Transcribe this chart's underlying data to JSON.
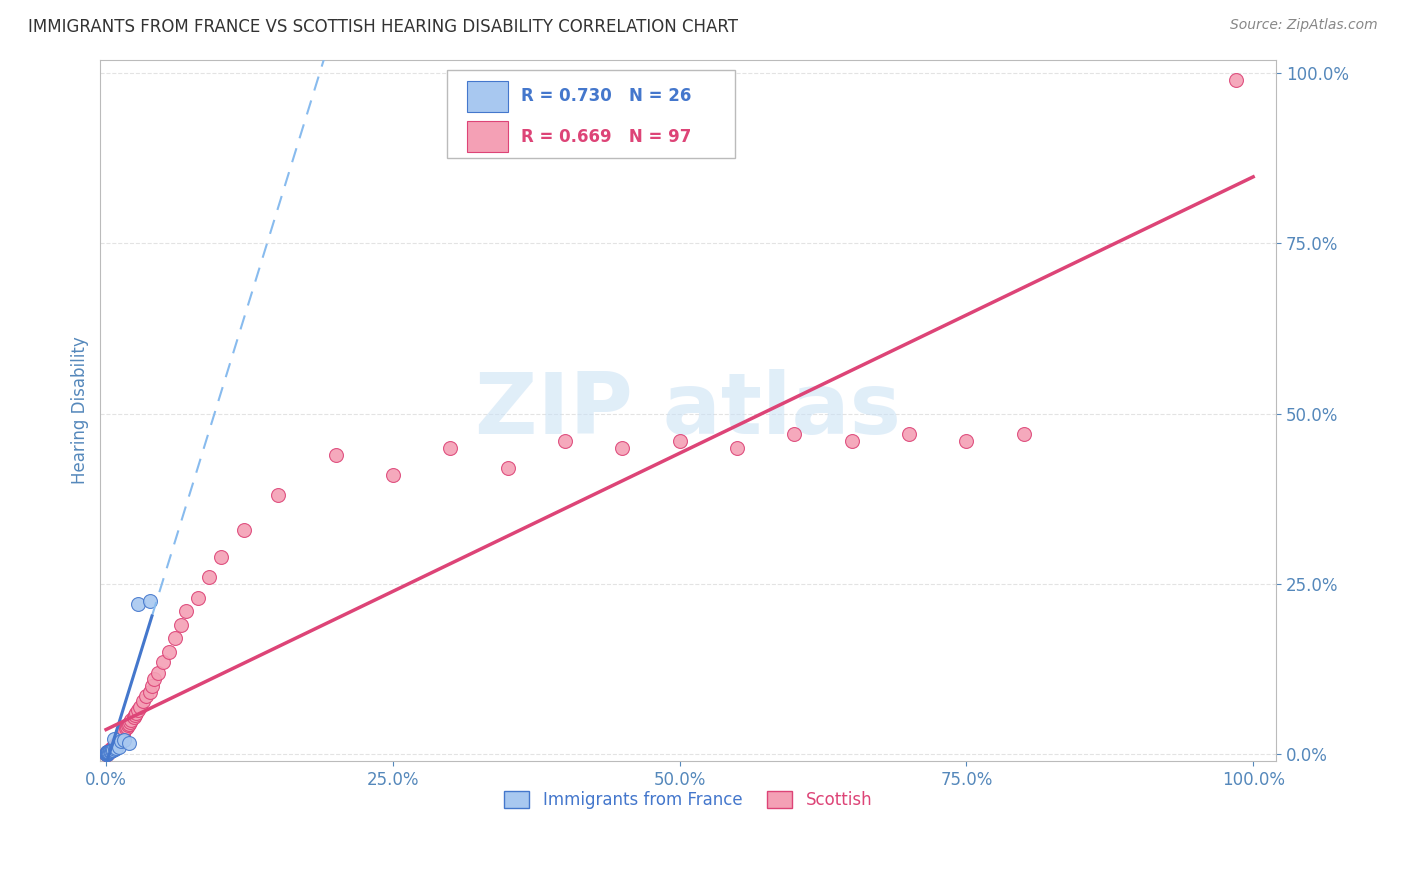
{
  "title": "IMMIGRANTS FROM FRANCE VS SCOTTISH HEARING DISABILITY CORRELATION CHART",
  "source": "Source: ZipAtlas.com",
  "ylabel": "Hearing Disability",
  "r_france": 0.73,
  "n_france": 26,
  "r_scottish": 0.669,
  "n_scottish": 97,
  "color_france_fill": "#A8C8F0",
  "color_scottish_fill": "#F4A0B5",
  "color_france_line": "#4477CC",
  "color_scottish_line": "#DD4477",
  "color_france_dashed": "#88BBEE",
  "title_color": "#333333",
  "source_color": "#888888",
  "axis_label_color": "#5588BB",
  "tick_color": "#5588BB",
  "background_color": "#FFFFFF",
  "grid_color": "#DDDDDD",
  "xlim": [
    0.0,
    1.0
  ],
  "ylim": [
    0.0,
    1.0
  ],
  "xticks": [
    0.0,
    0.25,
    0.5,
    0.75,
    1.0
  ],
  "yticks": [
    0.0,
    0.25,
    0.5,
    0.75,
    1.0
  ],
  "france_x": [
    0.0003,
    0.0005,
    0.0006,
    0.0007,
    0.0008,
    0.001,
    0.001,
    0.0012,
    0.0013,
    0.0015,
    0.0018,
    0.002,
    0.0025,
    0.003,
    0.004,
    0.005,
    0.006,
    0.007,
    0.008,
    0.009,
    0.011,
    0.013,
    0.016,
    0.02,
    0.028,
    0.038
  ],
  "france_y": [
    0.001,
    0.001,
    0.001,
    0.002,
    0.002,
    0.002,
    0.003,
    0.003,
    0.003,
    0.003,
    0.004,
    0.004,
    0.004,
    0.005,
    0.005,
    0.006,
    0.006,
    0.022,
    0.008,
    0.009,
    0.01,
    0.019,
    0.021,
    0.017,
    0.22,
    0.225
  ],
  "scottish_x": [
    0.0003,
    0.0004,
    0.0005,
    0.0006,
    0.0007,
    0.0008,
    0.0009,
    0.001,
    0.001,
    0.0012,
    0.0013,
    0.0014,
    0.0015,
    0.0016,
    0.0017,
    0.0018,
    0.002,
    0.002,
    0.002,
    0.0022,
    0.0025,
    0.003,
    0.003,
    0.003,
    0.0032,
    0.0035,
    0.004,
    0.004,
    0.004,
    0.0042,
    0.005,
    0.005,
    0.0052,
    0.006,
    0.006,
    0.006,
    0.007,
    0.007,
    0.0072,
    0.008,
    0.008,
    0.009,
    0.009,
    0.0095,
    0.01,
    0.01,
    0.011,
    0.011,
    0.012,
    0.012,
    0.013,
    0.013,
    0.014,
    0.015,
    0.015,
    0.016,
    0.017,
    0.018,
    0.019,
    0.02,
    0.021,
    0.022,
    0.024,
    0.025,
    0.026,
    0.028,
    0.03,
    0.032,
    0.035,
    0.038,
    0.04,
    0.042,
    0.045,
    0.05,
    0.055,
    0.06,
    0.065,
    0.07,
    0.08,
    0.09,
    0.1,
    0.12,
    0.15,
    0.2,
    0.25,
    0.3,
    0.35,
    0.4,
    0.45,
    0.5,
    0.55,
    0.6,
    0.65,
    0.7,
    0.75,
    0.8,
    0.985
  ],
  "scottish_y": [
    0.001,
    0.001,
    0.001,
    0.001,
    0.002,
    0.002,
    0.002,
    0.002,
    0.002,
    0.003,
    0.003,
    0.003,
    0.003,
    0.003,
    0.003,
    0.004,
    0.003,
    0.004,
    0.004,
    0.004,
    0.004,
    0.005,
    0.005,
    0.005,
    0.005,
    0.006,
    0.006,
    0.006,
    0.007,
    0.007,
    0.007,
    0.008,
    0.008,
    0.009,
    0.009,
    0.01,
    0.01,
    0.011,
    0.011,
    0.012,
    0.013,
    0.014,
    0.015,
    0.016,
    0.017,
    0.018,
    0.019,
    0.02,
    0.022,
    0.023,
    0.025,
    0.027,
    0.028,
    0.03,
    0.032,
    0.035,
    0.038,
    0.04,
    0.043,
    0.045,
    0.048,
    0.05,
    0.055,
    0.058,
    0.06,
    0.065,
    0.07,
    0.078,
    0.085,
    0.092,
    0.1,
    0.11,
    0.12,
    0.135,
    0.15,
    0.17,
    0.19,
    0.21,
    0.23,
    0.26,
    0.29,
    0.33,
    0.38,
    0.44,
    0.41,
    0.45,
    0.42,
    0.46,
    0.45,
    0.46,
    0.45,
    0.47,
    0.46,
    0.47,
    0.46,
    0.47,
    0.99
  ]
}
